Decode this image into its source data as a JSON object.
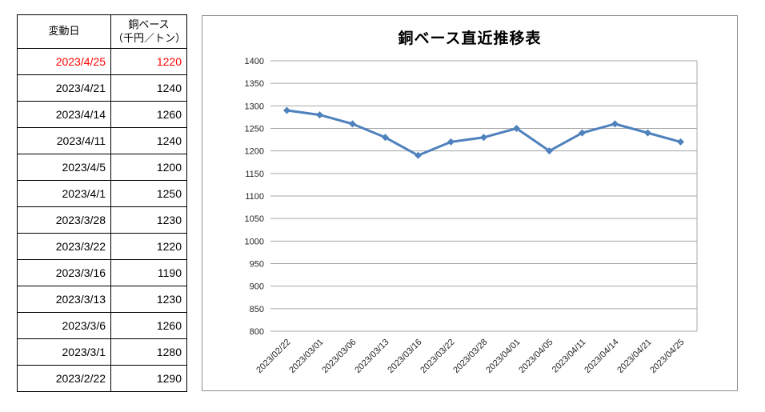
{
  "colors": {
    "line": "#4F81BD",
    "grid": "#A6A6A6",
    "axis_text": "#262626",
    "chart_border": "#8F8F8F",
    "table_border": "#000000",
    "highlight_text": "#FF0000"
  },
  "table": {
    "header": {
      "date_col": "変動日",
      "value_col_line1": "銅ベース",
      "value_col_line2": "（千円／トン）"
    },
    "highlight_row_index": 0,
    "rows": [
      {
        "date": "2023/4/25",
        "value": "1220"
      },
      {
        "date": "2023/4/21",
        "value": "1240"
      },
      {
        "date": "2023/4/14",
        "value": "1260"
      },
      {
        "date": "2023/4/11",
        "value": "1240"
      },
      {
        "date": "2023/4/5",
        "value": "1200"
      },
      {
        "date": "2023/4/1",
        "value": "1250"
      },
      {
        "date": "2023/3/28",
        "value": "1230"
      },
      {
        "date": "2023/3/22",
        "value": "1220"
      },
      {
        "date": "2023/3/16",
        "value": "1190"
      },
      {
        "date": "2023/3/13",
        "value": "1230"
      },
      {
        "date": "2023/3/6",
        "value": "1260"
      },
      {
        "date": "2023/3/1",
        "value": "1280"
      },
      {
        "date": "2023/2/22",
        "value": "1290"
      }
    ]
  },
  "chart_data": {
    "type": "line",
    "title": "銅ベース直近推移表",
    "categories": [
      "2023/02/22",
      "2023/03/01",
      "2023/03/06",
      "2023/03/13",
      "2023/03/16",
      "2023/03/22",
      "2023/03/28",
      "2023/04/01",
      "2023/04/05",
      "2023/04/11",
      "2023/04/14",
      "2023/04/21",
      "2023/04/25"
    ],
    "series": [
      {
        "name": "銅ベース（千円／トン）",
        "values": [
          1290,
          1280,
          1260,
          1230,
          1190,
          1220,
          1230,
          1250,
          1200,
          1240,
          1260,
          1240,
          1220
        ]
      }
    ],
    "xlabel": "",
    "ylabel": "",
    "ylim": [
      800,
      1400
    ],
    "ytick_step": 50,
    "grid": true,
    "legend_position": "none",
    "marker": "diamond"
  }
}
